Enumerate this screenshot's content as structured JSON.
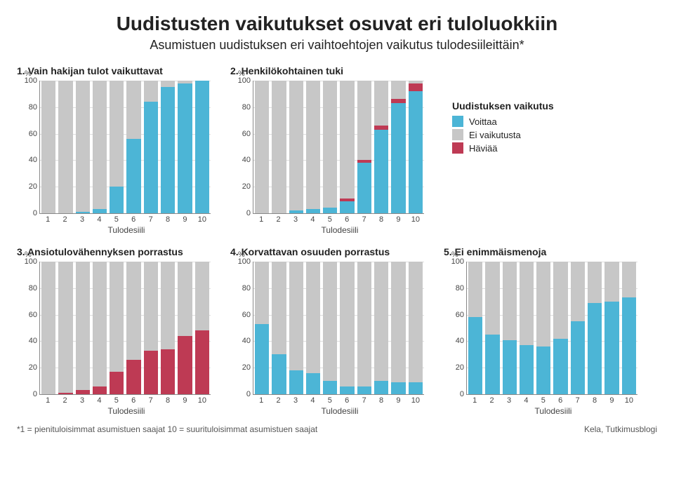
{
  "title": "Uudistusten vaikutukset osuvat eri tuloluokkiin",
  "subtitle": "Asumistuen uudistuksen eri vaihtoehtojen vaikutus tulodesiileittäin*",
  "y_unit": "%",
  "y_ticks": [
    0,
    20,
    40,
    60,
    80,
    100
  ],
  "x_axis_title": "Tulodesiili",
  "categories": [
    "1",
    "2",
    "3",
    "4",
    "5",
    "6",
    "7",
    "8",
    "9",
    "10"
  ],
  "colors": {
    "voittaa": "#4cb5d6",
    "ei_vaikutusta": "#c7c7c7",
    "haviaa": "#be3a54",
    "grid": "#dddddd",
    "axis": "#888888"
  },
  "legend": {
    "title": "Uudistuksen vaikutus",
    "items": [
      {
        "label": "Voittaa",
        "color": "#4cb5d6"
      },
      {
        "label": "Ei vaikutusta",
        "color": "#c7c7c7"
      },
      {
        "label": "Häviää",
        "color": "#be3a54"
      }
    ]
  },
  "panels": [
    {
      "title": "1. Vain hakijan tulot vaikuttavat",
      "series": {
        "voittaa": [
          0,
          0,
          1,
          3,
          20,
          56,
          84,
          95,
          98,
          100
        ],
        "haviaa": [
          0,
          0,
          0,
          0,
          0,
          0,
          0,
          0,
          0,
          0
        ],
        "ei_vaikutusta": [
          100,
          100,
          99,
          97,
          80,
          44,
          16,
          5,
          2,
          0
        ]
      }
    },
    {
      "title": "2. Henkilökohtainen tuki",
      "series": {
        "voittaa": [
          0,
          0,
          2,
          3,
          4,
          9,
          38,
          63,
          83,
          92
        ],
        "haviaa": [
          0,
          0,
          0,
          0,
          0,
          2,
          2,
          3,
          3,
          6
        ],
        "ei_vaikutusta": [
          100,
          100,
          98,
          97,
          96,
          89,
          60,
          34,
          14,
          2
        ]
      }
    },
    {
      "title": "3. Ansiotulovähennyksen porrastus",
      "series": {
        "voittaa": [
          0,
          0,
          0,
          0,
          0,
          0,
          0,
          0,
          0,
          0
        ],
        "haviaa": [
          0,
          1,
          3,
          6,
          17,
          26,
          33,
          34,
          44,
          48
        ],
        "ei_vaikutusta": [
          100,
          99,
          97,
          94,
          83,
          74,
          67,
          66,
          56,
          52
        ]
      }
    },
    {
      "title": "4. Korvattavan osuuden porrastus",
      "series": {
        "voittaa": [
          53,
          30,
          18,
          16,
          10,
          6,
          6,
          10,
          9,
          9
        ],
        "haviaa": [
          0,
          0,
          0,
          0,
          0,
          0,
          0,
          0,
          0,
          0
        ],
        "ei_vaikutusta": [
          47,
          70,
          82,
          84,
          90,
          94,
          94,
          90,
          91,
          91
        ]
      }
    },
    {
      "title": "5. Ei enimmäismenoja",
      "series": {
        "voittaa": [
          58,
          45,
          41,
          37,
          36,
          42,
          55,
          69,
          70,
          73
        ],
        "haviaa": [
          0,
          0,
          0,
          0,
          0,
          0,
          0,
          0,
          0,
          0
        ],
        "ei_vaikutusta": [
          42,
          55,
          59,
          63,
          64,
          58,
          45,
          31,
          30,
          27
        ]
      }
    }
  ],
  "footnote_left": "*1 = pienituloisimmat asumistuen saajat  10 = suurituloisimmat asumistuen saajat",
  "footnote_right": "Kela, Tutkimusblogi"
}
